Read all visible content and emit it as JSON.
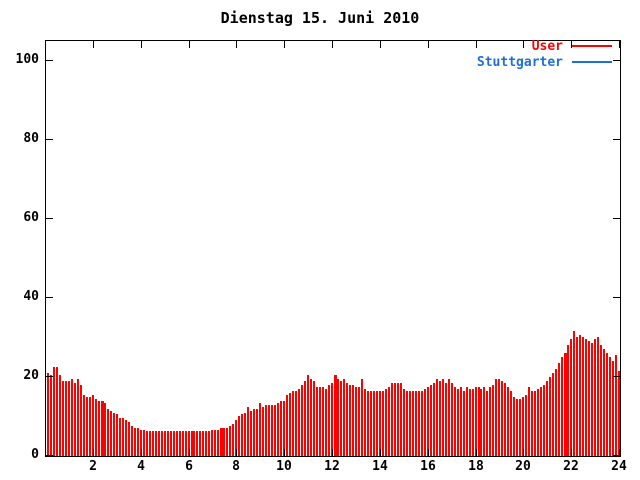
{
  "title": "Dienstag 15. Juni 2010",
  "legend": [
    {
      "label": "User",
      "color": "#ff0000"
    },
    {
      "label": "Stuttgarter",
      "color": "#1e6fd9"
    }
  ],
  "chart_data": {
    "type": "bar",
    "subtype": "impulses",
    "title": "Dienstag 15. Juni 2010",
    "xlabel": "",
    "ylabel": "",
    "xlim": [
      0,
      24
    ],
    "ylim": [
      0,
      105
    ],
    "x_ticks": [
      2,
      4,
      6,
      8,
      10,
      12,
      14,
      16,
      18,
      20,
      22,
      24
    ],
    "y_ticks": [
      0,
      20,
      40,
      60,
      80,
      100
    ],
    "grid": false,
    "legend_position": "top-right-inside",
    "x_start": 0,
    "x_step": 0.125,
    "emphasis_hours": [
      2.25,
      7.25,
      12,
      21.625
    ],
    "series": [
      {
        "name": "User",
        "color": "#ff0000",
        "values": [
          21,
          20.5,
          22.5,
          22.5,
          20.5,
          19,
          19,
          19,
          19.5,
          18.5,
          19.5,
          18,
          15.5,
          15,
          15,
          15.5,
          14.5,
          14,
          14,
          13.5,
          12,
          11.5,
          11,
          10.5,
          9.5,
          9.5,
          9,
          8.5,
          7.5,
          7,
          7,
          6.5,
          6.5,
          6.3,
          6.3,
          6.3,
          6.3,
          6.3,
          6.3,
          6.3,
          6.3,
          6.3,
          6.3,
          6.3,
          6.3,
          6.3,
          6.3,
          6.3,
          6.3,
          6.3,
          6.3,
          6.3,
          6.3,
          6.3,
          6.3,
          6.5,
          6.5,
          6.5,
          7,
          7,
          7,
          7.5,
          8,
          9,
          10,
          10.5,
          11,
          12.5,
          11.5,
          12,
          12,
          13.5,
          12.5,
          13,
          13,
          13,
          13,
          13.5,
          14,
          14,
          15.5,
          16,
          16.5,
          16.5,
          17,
          18,
          19,
          20.5,
          19.5,
          19,
          17.5,
          17.5,
          17.5,
          17,
          18,
          18.5,
          20.5,
          19.5,
          19,
          19.5,
          18.5,
          18,
          18,
          17.5,
          17.5,
          19.5,
          17,
          16.5,
          16.5,
          16.5,
          16.5,
          16.5,
          16.5,
          17,
          17.5,
          18.5,
          18.5,
          18.5,
          18.5,
          17,
          16.5,
          16.5,
          16.5,
          16.5,
          16.5,
          16.5,
          17,
          17.5,
          18,
          18.5,
          19.5,
          19,
          19.5,
          18.5,
          19.5,
          18.5,
          17.5,
          17,
          17.5,
          16.5,
          17.5,
          17,
          17,
          17.5,
          17.5,
          17,
          17.5,
          16.5,
          17.5,
          18,
          19.5,
          19.5,
          19,
          18.5,
          17.5,
          16.5,
          15,
          14.5,
          14.5,
          15,
          15.5,
          17.5,
          16.5,
          16.5,
          17,
          17.5,
          18,
          19,
          20,
          21,
          22,
          23.5,
          25,
          26,
          28,
          29.5,
          31.5,
          30,
          30.5,
          30,
          29.5,
          29,
          28.5,
          29.5,
          30,
          28,
          27,
          26,
          25,
          24,
          25.5,
          21.5
        ]
      },
      {
        "name": "Stuttgarter",
        "color": "#1e6fd9",
        "values": []
      }
    ]
  }
}
